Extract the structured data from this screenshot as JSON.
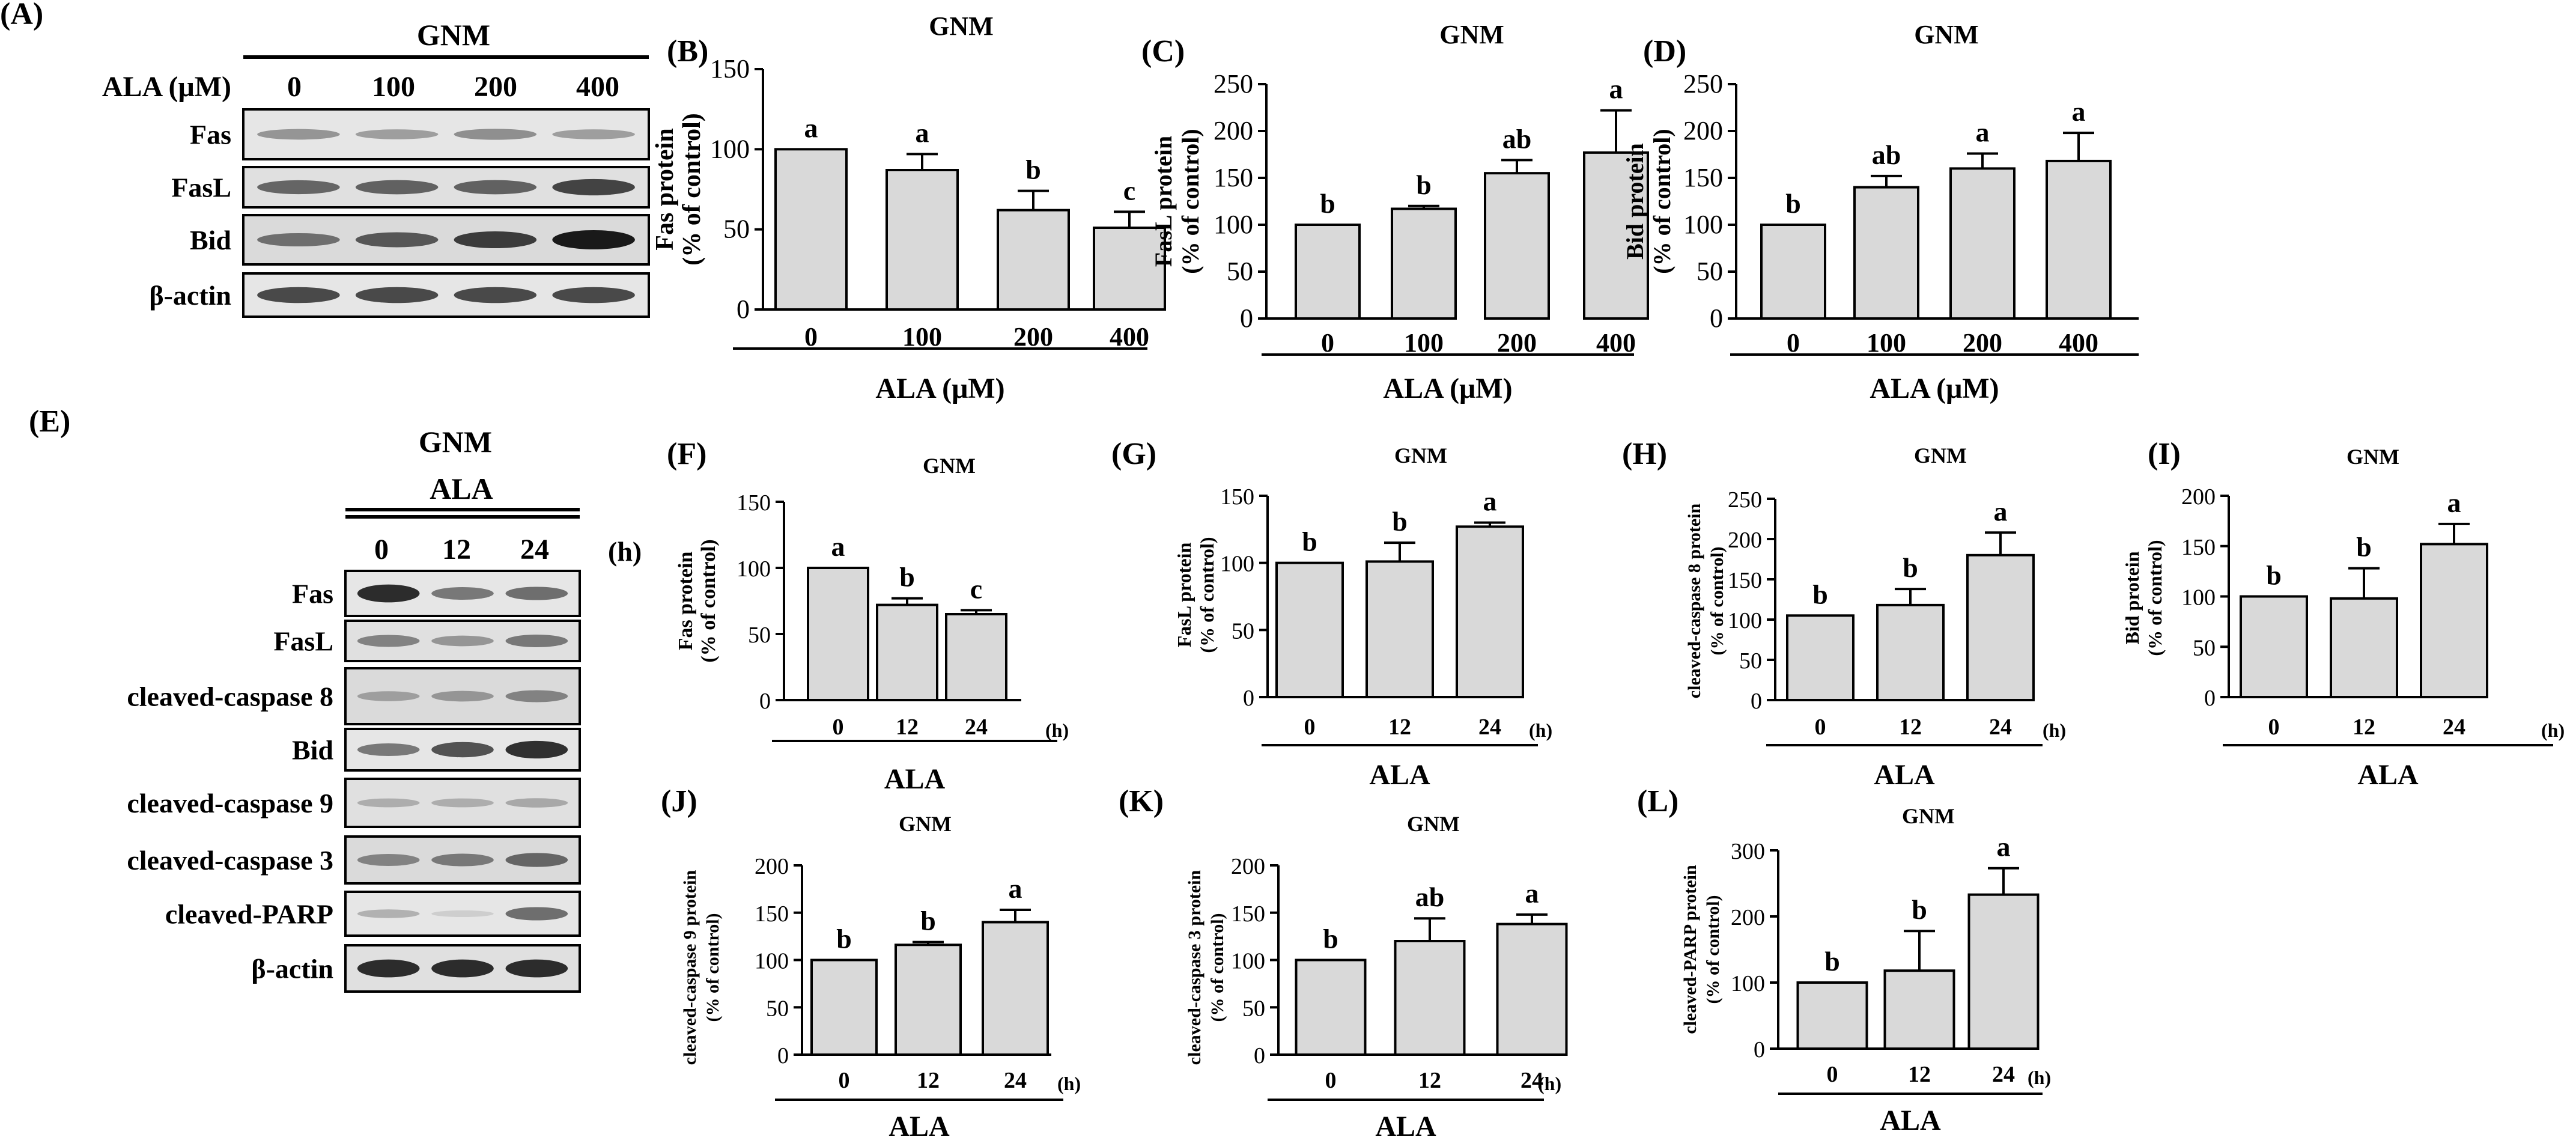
{
  "blots": [
    {
      "panel": "(A)",
      "group": "GNM",
      "conc_label": "ALA (μM)",
      "lanes": [
        "0",
        "100",
        "200",
        "400"
      ],
      "bands": [
        {
          "name": "Fas",
          "intensity": [
            0.35,
            0.3,
            0.38,
            0.3
          ]
        },
        {
          "name": "FasL",
          "intensity": [
            0.6,
            0.62,
            0.62,
            0.78
          ]
        },
        {
          "name": "Bid",
          "intensity": [
            0.55,
            0.68,
            0.82,
            1.0
          ]
        },
        {
          "name": "β-actin",
          "intensity": [
            0.75,
            0.75,
            0.75,
            0.75
          ]
        }
      ]
    },
    {
      "panel": "(E)",
      "group": "GNM",
      "treatment": "ALA",
      "lanes": [
        "0",
        "12",
        "24"
      ],
      "unit": "(h)",
      "bands": [
        {
          "name": "Fas",
          "intensity": [
            0.9,
            0.5,
            0.55
          ]
        },
        {
          "name": "FasL",
          "intensity": [
            0.45,
            0.35,
            0.5
          ]
        },
        {
          "name": "cleaved-caspase 8",
          "intensity": [
            0.3,
            0.35,
            0.45
          ]
        },
        {
          "name": "Bid",
          "intensity": [
            0.5,
            0.7,
            0.88
          ]
        },
        {
          "name": "cleaved-caspase 9",
          "intensity": [
            0.22,
            0.22,
            0.25
          ]
        },
        {
          "name": "cleaved-caspase 3",
          "intensity": [
            0.45,
            0.5,
            0.6
          ]
        },
        {
          "name": "cleaved-PARP",
          "intensity": [
            0.2,
            0.05,
            0.55
          ]
        },
        {
          "name": "β-actin",
          "intensity": [
            0.9,
            0.9,
            0.9
          ]
        }
      ]
    }
  ],
  "chart_data": [
    {
      "panel": "(B)",
      "type": "bar",
      "title": "GNM",
      "ylabel": "Fas protein",
      "ylabel2": "(% of control)",
      "xlabel": "ALA (μM)",
      "categories": [
        "0",
        "100",
        "200",
        "400"
      ],
      "values": [
        100,
        87,
        62,
        51
      ],
      "errors": [
        0,
        10,
        12,
        10
      ],
      "letters": [
        "a",
        "a",
        "b",
        "c"
      ],
      "ylim": [
        0,
        150
      ],
      "yticks": [
        0,
        50,
        100,
        150
      ]
    },
    {
      "panel": "(C)",
      "type": "bar",
      "title": "GNM",
      "ylabel": "FasL protein",
      "ylabel2": "(% of control)",
      "xlabel": "ALA (μM)",
      "categories": [
        "0",
        "100",
        "200",
        "400"
      ],
      "values": [
        100,
        117,
        155,
        177
      ],
      "errors": [
        0,
        3,
        14,
        45
      ],
      "letters": [
        "b",
        "b",
        "ab",
        "a"
      ],
      "ylim": [
        0,
        250
      ],
      "yticks": [
        0,
        50,
        100,
        150,
        200,
        250
      ]
    },
    {
      "panel": "(D)",
      "type": "bar",
      "title": "GNM",
      "ylabel": "Bid protein",
      "ylabel2": "(% of control)",
      "xlabel": "ALA (μM)",
      "categories": [
        "0",
        "100",
        "200",
        "400"
      ],
      "values": [
        100,
        140,
        160,
        168
      ],
      "errors": [
        0,
        12,
        16,
        30
      ],
      "letters": [
        "b",
        "ab",
        "a",
        "a"
      ],
      "ylim": [
        0,
        250
      ],
      "yticks": [
        0,
        50,
        100,
        150,
        200,
        250
      ]
    },
    {
      "panel": "(F)",
      "type": "bar",
      "title": "GNM",
      "ylabel": "Fas protein",
      "ylabel2": "(% of control)",
      "xlabel": "ALA",
      "unit": "(h)",
      "categories": [
        "0",
        "12",
        "24"
      ],
      "values": [
        100,
        72,
        65
      ],
      "errors": [
        0,
        5,
        3
      ],
      "letters": [
        "a",
        "b",
        "c"
      ],
      "ylim": [
        0,
        150
      ],
      "yticks": [
        0,
        50,
        100,
        150
      ]
    },
    {
      "panel": "(G)",
      "type": "bar",
      "title": "GNM",
      "ylabel": "FasL protein",
      "ylabel2": "(% of control)",
      "xlabel": "ALA",
      "unit": "(h)",
      "categories": [
        "0",
        "12",
        "24"
      ],
      "values": [
        100,
        101,
        127
      ],
      "errors": [
        0,
        14,
        3
      ],
      "letters": [
        "b",
        "b",
        "a"
      ],
      "ylim": [
        0,
        150
      ],
      "yticks": [
        0,
        50,
        100,
        150
      ]
    },
    {
      "panel": "(H)",
      "type": "bar",
      "title": "GNM",
      "ylabel": "cleaved-caspase 8 protein",
      "ylabel2": "(% of control)",
      "xlabel": "ALA",
      "unit": "(h)",
      "categories": [
        "0",
        "12",
        "24"
      ],
      "values": [
        105,
        118,
        180
      ],
      "errors": [
        0,
        20,
        28
      ],
      "letters": [
        "b",
        "b",
        "a"
      ],
      "ylim": [
        0,
        250
      ],
      "yticks": [
        0,
        50,
        100,
        150,
        200,
        250
      ]
    },
    {
      "panel": "(I)",
      "type": "bar",
      "title": "GNM",
      "ylabel": "Bid protein",
      "ylabel2": "(% of control)",
      "xlabel": "ALA",
      "unit": "(h)",
      "categories": [
        "0",
        "12",
        "24"
      ],
      "values": [
        100,
        98,
        152
      ],
      "errors": [
        0,
        30,
        20
      ],
      "letters": [
        "b",
        "b",
        "a"
      ],
      "ylim": [
        0,
        200
      ],
      "yticks": [
        0,
        50,
        100,
        150,
        200
      ]
    },
    {
      "panel": "(J)",
      "type": "bar",
      "title": "GNM",
      "ylabel": "cleaved-caspase 9 protein",
      "ylabel2": "(% of control)",
      "xlabel": "ALA",
      "unit": "(h)",
      "categories": [
        "0",
        "12",
        "24"
      ],
      "values": [
        100,
        116,
        140
      ],
      "errors": [
        0,
        3,
        13
      ],
      "letters": [
        "b",
        "b",
        "a"
      ],
      "ylim": [
        0,
        200
      ],
      "yticks": [
        0,
        50,
        100,
        150,
        200
      ]
    },
    {
      "panel": "(K)",
      "type": "bar",
      "title": "GNM",
      "ylabel": "cleaved-caspase 3 protein",
      "ylabel2": "(% of control)",
      "xlabel": "ALA",
      "unit": "(h)",
      "categories": [
        "0",
        "12",
        "24"
      ],
      "values": [
        100,
        120,
        138
      ],
      "errors": [
        0,
        24,
        10
      ],
      "letters": [
        "b",
        "ab",
        "a"
      ],
      "ylim": [
        0,
        200
      ],
      "yticks": [
        0,
        50,
        100,
        150,
        200
      ]
    },
    {
      "panel": "(L)",
      "type": "bar",
      "title": "GNM",
      "ylabel": "cleaved-PARP protein",
      "ylabel2": "(% of control)",
      "xlabel": "ALA",
      "unit": "(h)",
      "categories": [
        "0",
        "12",
        "24"
      ],
      "values": [
        100,
        118,
        233
      ],
      "errors": [
        0,
        60,
        40
      ],
      "letters": [
        "b",
        "b",
        "a"
      ],
      "ylim": [
        0,
        300
      ],
      "yticks": [
        0,
        100,
        200,
        300
      ]
    }
  ]
}
